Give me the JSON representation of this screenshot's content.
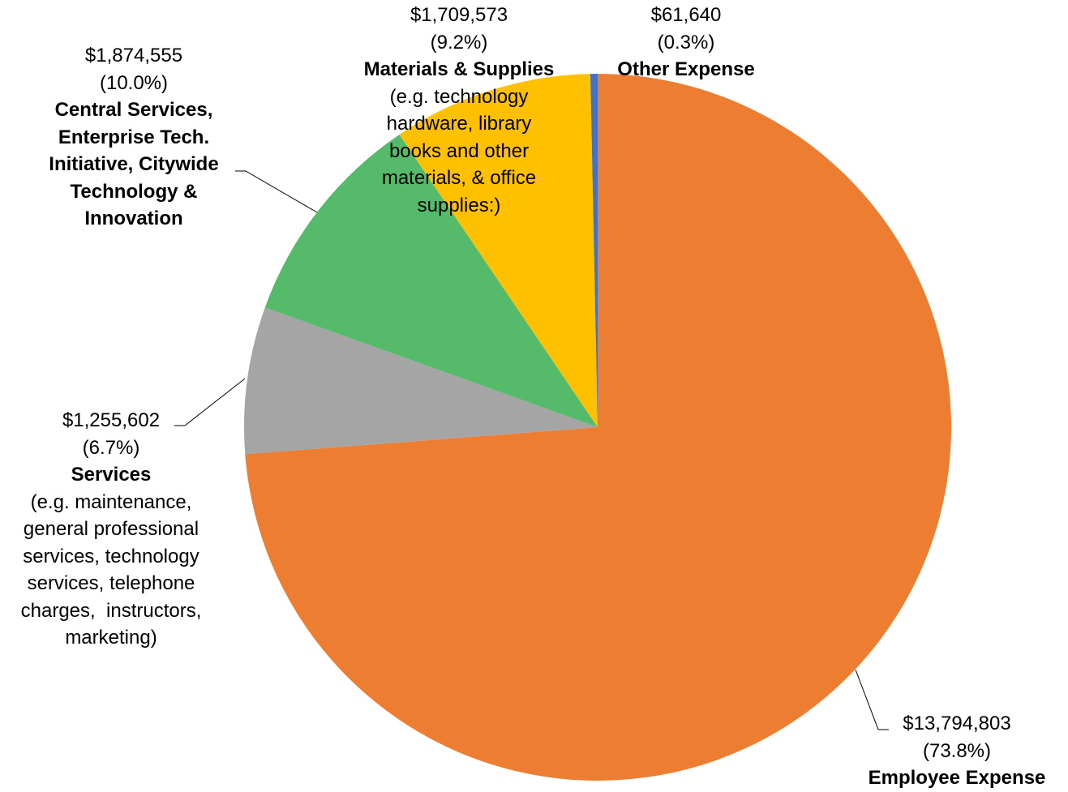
{
  "chart_data": {
    "type": "pie",
    "categories": [
      "Employee Expense",
      "Services",
      "Central Services,\nEnterprise Tech.\nInitiative, Citywide\nTechnology &\nInnovation",
      "Materials & Supplies",
      "Other Expense"
    ],
    "descriptions": [
      null,
      "(e.g. maintenance,\ngeneral professional\nservices, technology\nservices, telephone\ncharges,  instructors,\nmarketing)",
      null,
      "(e.g. technology\nhardware, library\nbooks and other\nmaterials, & office\nsupplies:)",
      null
    ],
    "values": [
      13794803,
      1255602,
      1874555,
      1709573,
      61640
    ],
    "value_labels": [
      "$13,794,803",
      "$1,255,602",
      "$1,874,555",
      "$1,709,573",
      "$61,640"
    ],
    "percents": [
      73.8,
      6.7,
      10.0,
      9.2,
      0.3
    ],
    "percent_labels": [
      "(73.8%)",
      "(6.7%)",
      "(10.0%)",
      "(9.2%)",
      "(0.3%)"
    ],
    "colors": [
      "#ed7d31",
      "#a5a5a5",
      "#55bb6b",
      "#ffc000",
      "#4472c4"
    ],
    "start_angle": 0,
    "direction": "clockwise"
  }
}
